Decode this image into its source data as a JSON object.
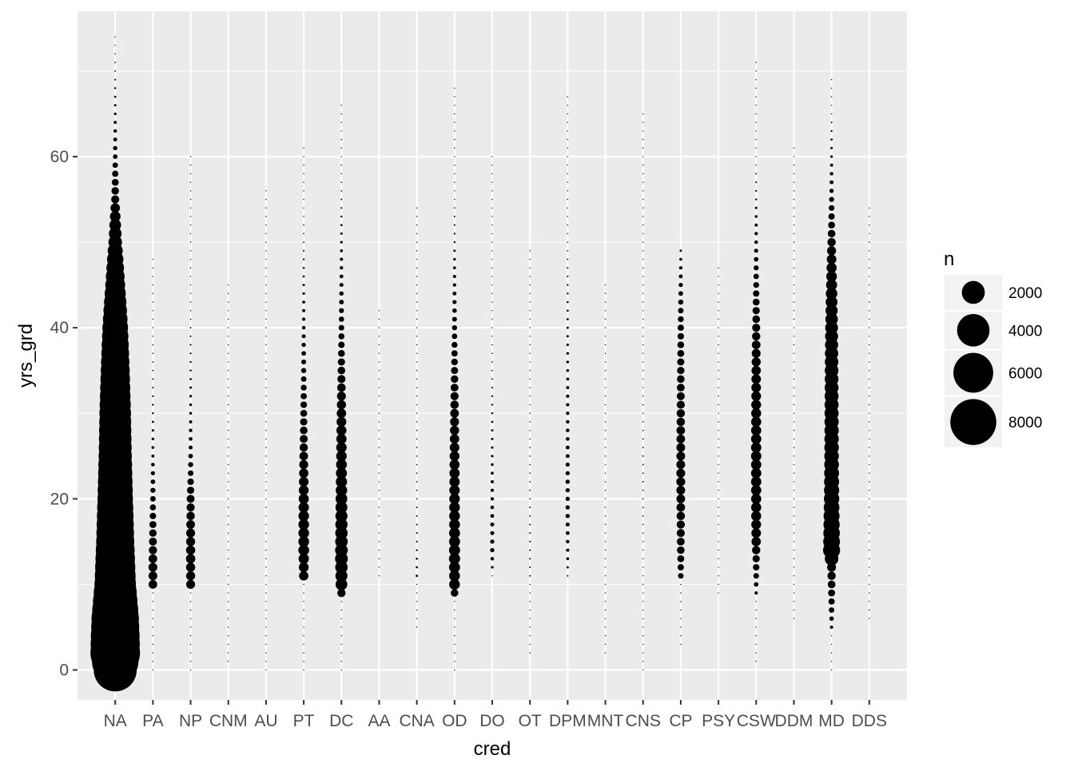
{
  "chart_data": {
    "type": "scatter",
    "xlabel": "cred",
    "ylabel": "yrs_grd",
    "categories": [
      "NA",
      "PA",
      "NP",
      "CNM",
      "AU",
      "PT",
      "DC",
      "AA",
      "CNA",
      "OD",
      "DO",
      "OT",
      "DPM",
      "MNT",
      "CNS",
      "CP",
      "PSY",
      "CSW",
      "DDM",
      "MD",
      "DDS"
    ],
    "ylim": [
      -3.5,
      77
    ],
    "yticks": [
      0,
      20,
      40,
      60
    ],
    "grid": true,
    "size_variable": "n",
    "legend": {
      "title": "n",
      "placement": "right",
      "entries": [
        {
          "label": "2000",
          "value": 2000
        },
        {
          "label": "4000",
          "value": 4000
        },
        {
          "label": "6000",
          "value": 6000
        },
        {
          "label": "8000",
          "value": 8000
        }
      ]
    },
    "size_range": [
      0,
      9300
    ],
    "series": [
      {
        "category": "NA",
        "range": [
          0,
          74
        ],
        "profile": [
          [
            0,
            7000
          ],
          [
            2,
            9300
          ],
          [
            4,
            9000
          ],
          [
            6,
            8500
          ],
          [
            8,
            7500
          ],
          [
            10,
            6500
          ],
          [
            15,
            5500
          ],
          [
            20,
            4800
          ],
          [
            25,
            4200
          ],
          [
            30,
            3800
          ],
          [
            35,
            3200
          ],
          [
            40,
            2500
          ],
          [
            45,
            1500
          ],
          [
            50,
            700
          ],
          [
            55,
            250
          ],
          [
            60,
            80
          ],
          [
            65,
            25
          ],
          [
            70,
            8
          ],
          [
            74,
            3
          ]
        ]
      },
      {
        "category": "PA",
        "range": [
          0,
          48
        ],
        "profile": [
          [
            0,
            1
          ],
          [
            9,
            2
          ],
          [
            10,
            280
          ],
          [
            12,
            300
          ],
          [
            15,
            240
          ],
          [
            18,
            160
          ],
          [
            22,
            80
          ],
          [
            25,
            35
          ],
          [
            30,
            15
          ],
          [
            35,
            8
          ],
          [
            40,
            4
          ],
          [
            44,
            2
          ],
          [
            48,
            1
          ]
        ]
      },
      {
        "category": "NP",
        "range": [
          0,
          60
        ],
        "profile": [
          [
            0,
            1
          ],
          [
            9,
            3
          ],
          [
            10,
            300
          ],
          [
            13,
            330
          ],
          [
            16,
            300
          ],
          [
            20,
            240
          ],
          [
            23,
            120
          ],
          [
            26,
            60
          ],
          [
            30,
            30
          ],
          [
            35,
            15
          ],
          [
            40,
            8
          ],
          [
            45,
            4
          ],
          [
            50,
            2
          ],
          [
            55,
            1
          ],
          [
            60,
            1
          ]
        ]
      },
      {
        "category": "CNM",
        "range": [
          1,
          45
        ],
        "profile": [
          [
            1,
            1
          ],
          [
            10,
            1
          ],
          [
            20,
            1
          ],
          [
            30,
            1
          ],
          [
            40,
            1
          ],
          [
            45,
            1
          ]
        ]
      },
      {
        "category": "AU",
        "range": [
          0,
          56
        ],
        "profile": [
          [
            0,
            1
          ],
          [
            10,
            2
          ],
          [
            20,
            2
          ],
          [
            30,
            2
          ],
          [
            40,
            1
          ],
          [
            50,
            1
          ],
          [
            56,
            1
          ]
        ]
      },
      {
        "category": "PT",
        "range": [
          0,
          61
        ],
        "profile": [
          [
            0,
            1
          ],
          [
            5,
            2
          ],
          [
            10,
            5
          ],
          [
            11,
            330
          ],
          [
            14,
            440
          ],
          [
            18,
            420
          ],
          [
            22,
            350
          ],
          [
            26,
            260
          ],
          [
            30,
            180
          ],
          [
            35,
            100
          ],
          [
            40,
            50
          ],
          [
            45,
            20
          ],
          [
            50,
            8
          ],
          [
            55,
            3
          ],
          [
            61,
            1
          ]
        ]
      },
      {
        "category": "DC",
        "range": [
          0,
          66
        ],
        "profile": [
          [
            0,
            1
          ],
          [
            8,
            2
          ],
          [
            10,
            520
          ],
          [
            13,
            620
          ],
          [
            16,
            580
          ],
          [
            20,
            520
          ],
          [
            24,
            440
          ],
          [
            28,
            380
          ],
          [
            32,
            300
          ],
          [
            36,
            200
          ],
          [
            40,
            120
          ],
          [
            45,
            60
          ],
          [
            50,
            25
          ],
          [
            55,
            8
          ],
          [
            60,
            3
          ],
          [
            66,
            1
          ]
        ]
      },
      {
        "category": "AA",
        "range": [
          11,
          42
        ],
        "profile": [
          [
            11,
            1
          ],
          [
            20,
            1
          ],
          [
            30,
            1
          ],
          [
            42,
            1
          ]
        ]
      },
      {
        "category": "CNA",
        "range": [
          5,
          54
        ],
        "profile": [
          [
            5,
            1
          ],
          [
            10,
            2
          ],
          [
            11,
            20
          ],
          [
            15,
            12
          ],
          [
            20,
            8
          ],
          [
            30,
            5
          ],
          [
            40,
            3
          ],
          [
            50,
            1
          ],
          [
            54,
            1
          ]
        ]
      },
      {
        "category": "OD",
        "range": [
          0,
          68
        ],
        "profile": [
          [
            0,
            1
          ],
          [
            8,
            2
          ],
          [
            10,
            430
          ],
          [
            13,
            470
          ],
          [
            16,
            450
          ],
          [
            20,
            420
          ],
          [
            24,
            380
          ],
          [
            28,
            320
          ],
          [
            32,
            250
          ],
          [
            36,
            170
          ],
          [
            40,
            100
          ],
          [
            45,
            45
          ],
          [
            50,
            15
          ],
          [
            55,
            5
          ],
          [
            60,
            2
          ],
          [
            68,
            1
          ]
        ]
      },
      {
        "category": "DO",
        "range": [
          11,
          60
        ],
        "profile": [
          [
            11,
            5
          ],
          [
            14,
            70
          ],
          [
            17,
            60
          ],
          [
            20,
            45
          ],
          [
            25,
            25
          ],
          [
            30,
            15
          ],
          [
            35,
            8
          ],
          [
            40,
            5
          ],
          [
            45,
            3
          ],
          [
            50,
            2
          ],
          [
            60,
            1
          ]
        ]
      },
      {
        "category": "OT",
        "range": [
          2,
          49
        ],
        "profile": [
          [
            2,
            1
          ],
          [
            10,
            3
          ],
          [
            11,
            10
          ],
          [
            15,
            10
          ],
          [
            20,
            8
          ],
          [
            25,
            6
          ],
          [
            30,
            5
          ],
          [
            35,
            4
          ],
          [
            40,
            3
          ],
          [
            45,
            2
          ],
          [
            49,
            1
          ]
        ]
      },
      {
        "category": "DPM",
        "range": [
          11,
          67
        ],
        "profile": [
          [
            11,
            10
          ],
          [
            14,
            40
          ],
          [
            18,
            70
          ],
          [
            22,
            70
          ],
          [
            26,
            55
          ],
          [
            30,
            45
          ],
          [
            35,
            30
          ],
          [
            40,
            20
          ],
          [
            45,
            12
          ],
          [
            50,
            6
          ],
          [
            55,
            3
          ],
          [
            60,
            1
          ],
          [
            67,
            1
          ]
        ]
      },
      {
        "category": "MNT",
        "range": [
          2,
          45
        ],
        "profile": [
          [
            2,
            1
          ],
          [
            10,
            2
          ],
          [
            20,
            2
          ],
          [
            30,
            2
          ],
          [
            40,
            1
          ],
          [
            45,
            1
          ]
        ]
      },
      {
        "category": "CNS",
        "range": [
          0,
          65
        ],
        "profile": [
          [
            0,
            1
          ],
          [
            10,
            2
          ],
          [
            15,
            5
          ],
          [
            20,
            8
          ],
          [
            25,
            8
          ],
          [
            30,
            6
          ],
          [
            35,
            4
          ],
          [
            40,
            3
          ],
          [
            45,
            2
          ],
          [
            50,
            1
          ],
          [
            57,
            1
          ],
          [
            65,
            1
          ]
        ]
      },
      {
        "category": "CP",
        "range": [
          3,
          49
        ],
        "profile": [
          [
            3,
            1
          ],
          [
            10,
            3
          ],
          [
            11,
            120
          ],
          [
            14,
            220
          ],
          [
            18,
            270
          ],
          [
            22,
            300
          ],
          [
            26,
            290
          ],
          [
            30,
            260
          ],
          [
            35,
            210
          ],
          [
            40,
            150
          ],
          [
            45,
            70
          ],
          [
            49,
            20
          ]
        ]
      },
      {
        "category": "PSY",
        "range": [
          9,
          47
        ],
        "profile": [
          [
            9,
            1
          ],
          [
            15,
            2
          ],
          [
            20,
            2
          ],
          [
            30,
            2
          ],
          [
            40,
            1
          ],
          [
            47,
            1
          ]
        ]
      },
      {
        "category": "CSW",
        "range": [
          1,
          71
        ],
        "profile": [
          [
            1,
            1
          ],
          [
            8,
            2
          ],
          [
            13,
            200
          ],
          [
            15,
            330
          ],
          [
            18,
            380
          ],
          [
            22,
            400
          ],
          [
            26,
            400
          ],
          [
            30,
            380
          ],
          [
            35,
            330
          ],
          [
            40,
            250
          ],
          [
            45,
            130
          ],
          [
            50,
            50
          ],
          [
            55,
            15
          ],
          [
            60,
            4
          ],
          [
            65,
            2
          ],
          [
            71,
            1
          ]
        ]
      },
      {
        "category": "DDM",
        "range": [
          6,
          61
        ],
        "profile": [
          [
            6,
            1
          ],
          [
            10,
            2
          ],
          [
            15,
            3
          ],
          [
            20,
            3
          ],
          [
            30,
            3
          ],
          [
            40,
            2
          ],
          [
            50,
            1
          ],
          [
            61,
            1
          ]
        ]
      },
      {
        "category": "MD",
        "range": [
          0,
          69
        ],
        "profile": [
          [
            0,
            1
          ],
          [
            4,
            2
          ],
          [
            12,
            300
          ],
          [
            14,
            1100
          ],
          [
            17,
            1000
          ],
          [
            20,
            900
          ],
          [
            24,
            820
          ],
          [
            28,
            780
          ],
          [
            32,
            740
          ],
          [
            36,
            700
          ],
          [
            40,
            620
          ],
          [
            44,
            500
          ],
          [
            48,
            350
          ],
          [
            52,
            180
          ],
          [
            56,
            70
          ],
          [
            60,
            25
          ],
          [
            65,
            6
          ],
          [
            69,
            2
          ]
        ]
      },
      {
        "category": "DDS",
        "range": [
          6,
          54
        ],
        "profile": [
          [
            6,
            1
          ],
          [
            10,
            2
          ],
          [
            15,
            3
          ],
          [
            20,
            3
          ],
          [
            30,
            3
          ],
          [
            40,
            2
          ],
          [
            50,
            1
          ],
          [
            54,
            1
          ]
        ]
      }
    ]
  }
}
